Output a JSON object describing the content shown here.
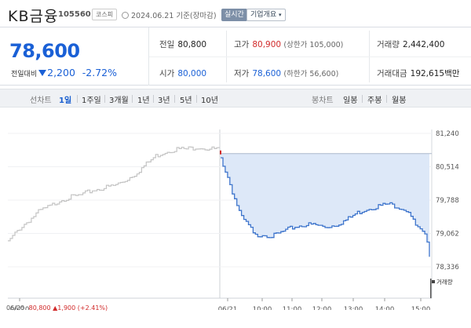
{
  "header": {
    "stock_name": "KB금융",
    "stock_code": "105560",
    "market": "코스피",
    "datetime": "2024.06.21 기준(장마감)",
    "realtime_label": "실시간",
    "corp_info_label": "기업개요"
  },
  "summary": {
    "price": "78,600",
    "change_label": "전일대비",
    "change_value": "2,200",
    "change_pct": "-2.72%",
    "prev_label": "전일",
    "prev_value": "80,800",
    "high_label": "고가",
    "high_value": "80,900",
    "upper_limit": "(상한가 105,000)",
    "volume_label": "거래량",
    "volume_value": "2,442,400",
    "open_label": "시가",
    "open_value": "80,000",
    "low_label": "저가",
    "low_value": "78,600",
    "lower_limit": "(하한가 56,600)",
    "amount_label": "거래대금",
    "amount_value": "192,615",
    "amount_unit": "백만"
  },
  "toolbar": {
    "line_chart_label": "선차트",
    "periods": [
      "1일",
      "1주일",
      "3개월",
      "1년",
      "3년",
      "5년",
      "10년"
    ],
    "active_period": "1일",
    "candle_chart_label": "봉차트",
    "candle_periods": [
      "일봉",
      "주봉",
      "월봉"
    ]
  },
  "chart_data": {
    "type": "line",
    "ylim": [
      78336,
      81240
    ],
    "y_ticks": [
      81240,
      80514,
      79788,
      79062,
      78336
    ],
    "y_tick_labels": [
      "81,240",
      "80,514",
      "79,788",
      "79,062",
      "78,336"
    ],
    "x_tick_labels": [
      "06/20",
      "06/21",
      "10:00",
      "11:00",
      "12:00",
      "13:00",
      "14:00",
      "15:00"
    ],
    "reference_line": 80800,
    "series": [
      {
        "label": "06/20",
        "color": "#c4c4c4",
        "x": [
          0,
          0.05,
          0.1,
          0.15,
          0.2,
          0.25,
          0.3,
          0.35,
          0.4,
          0.45,
          0.5,
          0.55,
          0.6,
          0.65,
          0.7,
          0.75,
          0.8,
          0.85,
          0.9,
          0.95,
          1.0
        ],
        "y": [
          78870,
          79150,
          79350,
          79550,
          79650,
          79800,
          79850,
          79900,
          80000,
          80050,
          80100,
          80200,
          80350,
          80550,
          80750,
          80850,
          80900,
          80900,
          80950,
          80900,
          80900
        ]
      },
      {
        "label": "06/21",
        "color": "#3d74cc",
        "x": [
          0,
          0.02,
          0.04,
          0.06,
          0.08,
          0.1,
          0.12,
          0.14,
          0.16,
          0.2,
          0.25,
          0.3,
          0.35,
          0.4,
          0.45,
          0.5,
          0.55,
          0.6,
          0.65,
          0.7,
          0.75,
          0.8,
          0.85,
          0.9,
          0.93,
          0.96,
          0.98,
          1.0
        ],
        "y": [
          80700,
          80450,
          80200,
          79900,
          79650,
          79400,
          79300,
          79200,
          79000,
          79050,
          79000,
          79100,
          79200,
          79250,
          79250,
          79200,
          79250,
          79350,
          79500,
          79600,
          79650,
          79700,
          79650,
          79550,
          79250,
          79100,
          79000,
          78600
        ]
      }
    ]
  },
  "footer": {
    "date": "06/20",
    "price": "80,800",
    "change": "▲1,900",
    "pct": "(+2.41%)",
    "volume_legend": "거래량"
  },
  "colors": {
    "up": "#d12a2a",
    "down": "#1a60d6",
    "accent": "#3d74cc"
  }
}
